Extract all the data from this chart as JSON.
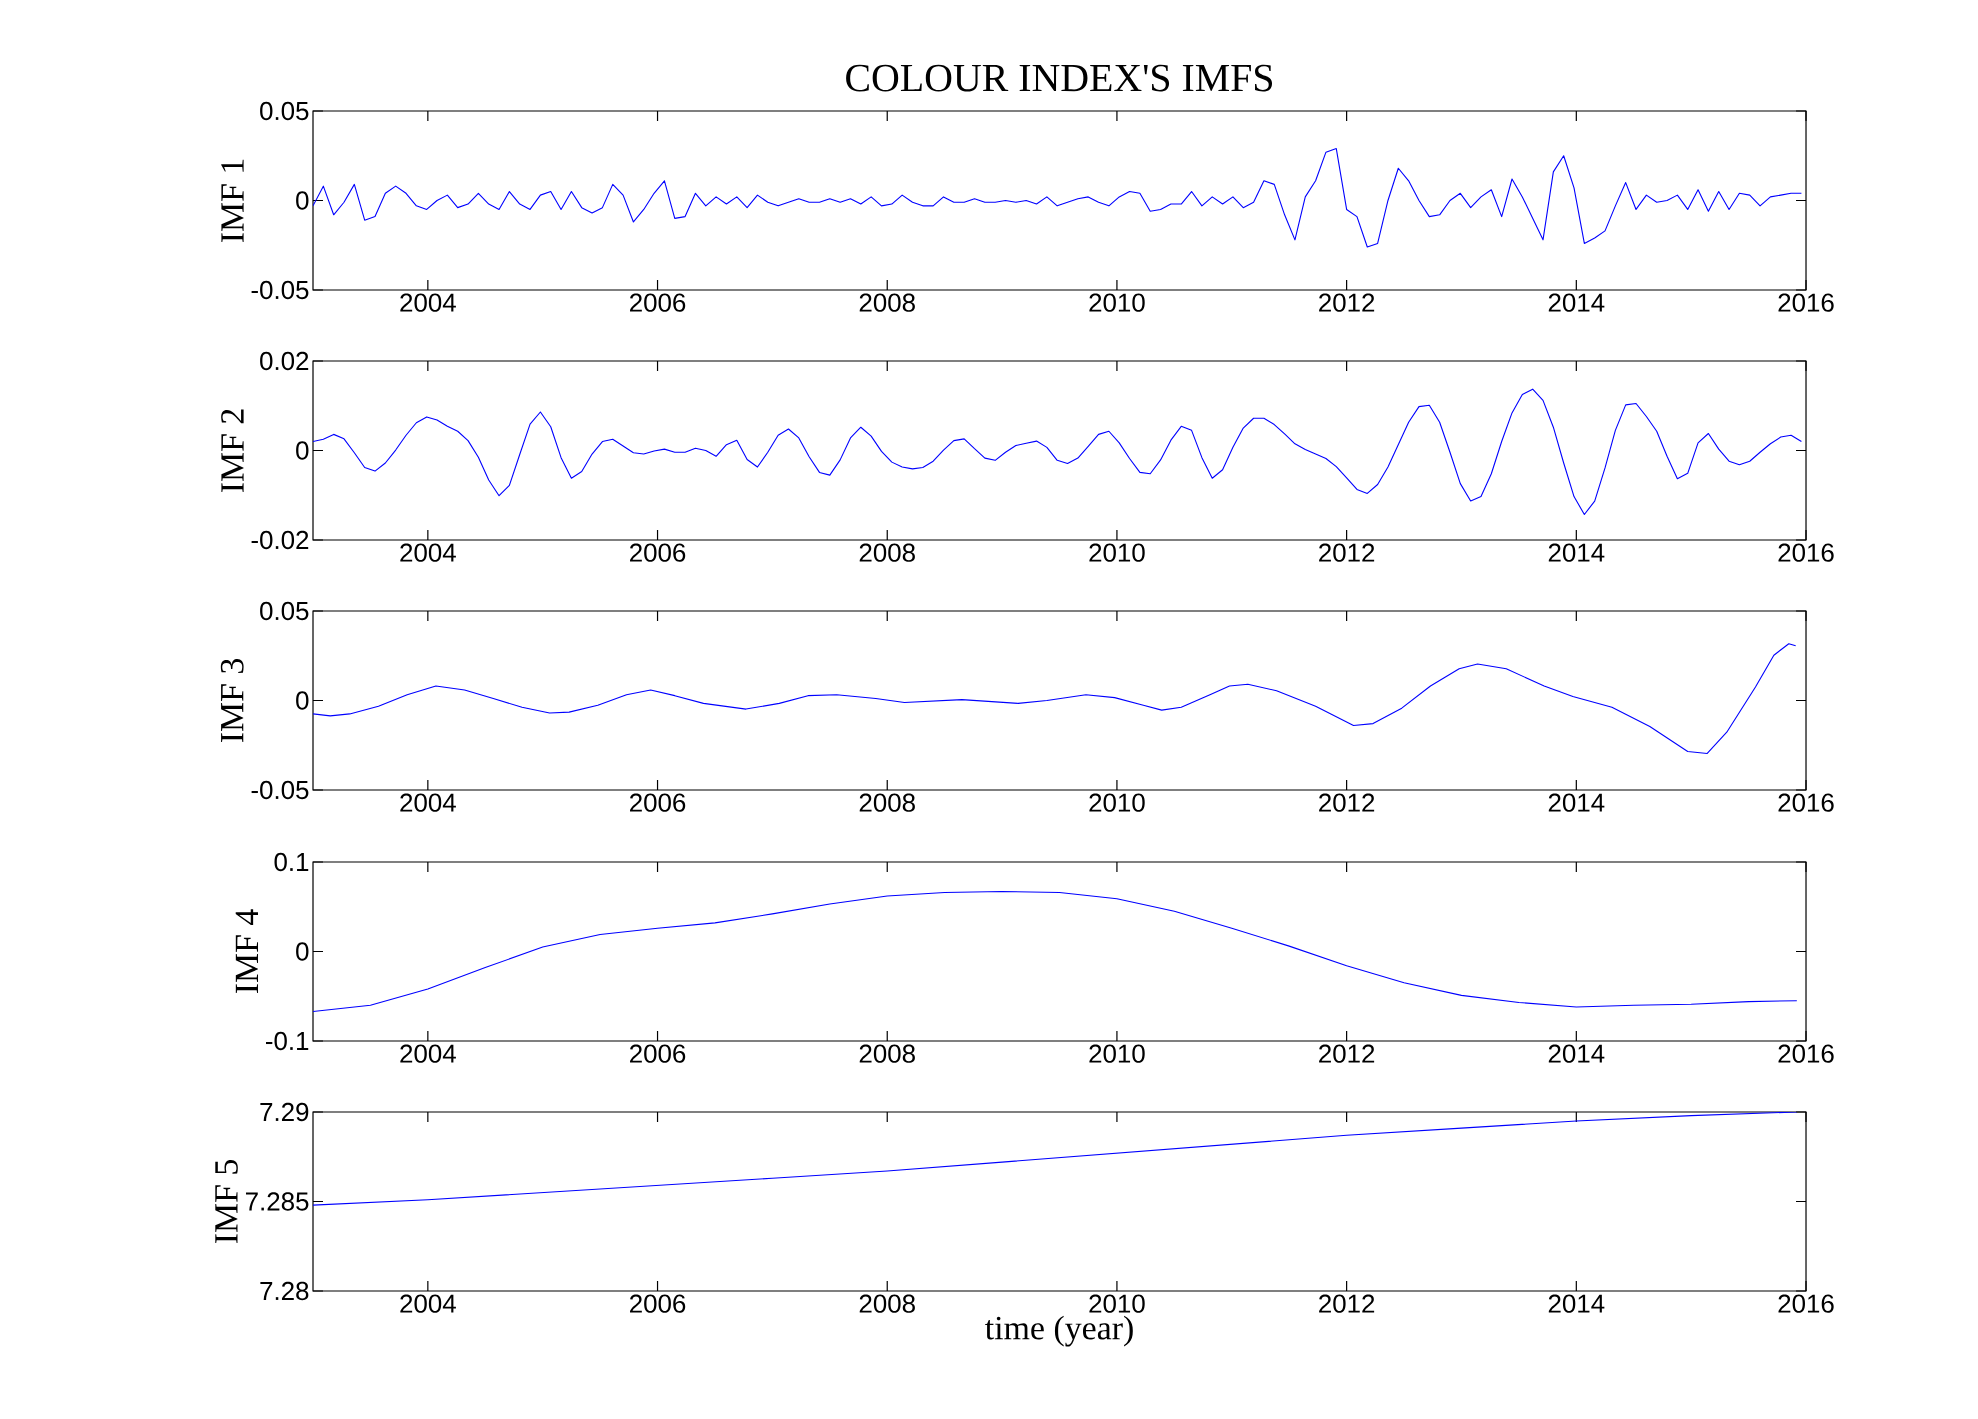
{
  "chart_data": [
    {
      "type": "line",
      "title": "COLOUR INDEX'S IMFS",
      "ylabel": "IMF 1",
      "xlim": [
        2003,
        2016
      ],
      "ylim": [
        -0.05,
        0.05
      ],
      "xticks": [
        2004,
        2006,
        2008,
        2010,
        2012,
        2014,
        2016
      ],
      "yticks": [
        -0.05,
        0,
        0.05
      ],
      "x": [
        2003.0,
        2003.09,
        2003.18,
        2003.27,
        2003.36,
        2003.45,
        2003.54,
        2003.63,
        2003.72,
        2003.81,
        2003.9,
        2003.99,
        2004.08,
        2004.17,
        2004.26,
        2004.35,
        2004.44,
        2004.53,
        2004.62,
        2004.71,
        2004.8,
        2004.89,
        2004.98,
        2005.07,
        2005.16,
        2005.25,
        2005.34,
        2005.43,
        2005.52,
        2005.61,
        2005.7,
        2005.79,
        2005.88,
        2005.97,
        2006.06,
        2006.15,
        2006.24,
        2006.33,
        2006.42,
        2006.51,
        2006.6,
        2006.69,
        2006.78,
        2006.87,
        2006.96,
        2007.05,
        2007.14,
        2007.23,
        2007.32,
        2007.41,
        2007.5,
        2007.59,
        2007.68,
        2007.77,
        2007.86,
        2007.95,
        2008.04,
        2008.13,
        2008.22,
        2008.31,
        2008.4,
        2008.49,
        2008.58,
        2008.67,
        2008.76,
        2008.85,
        2008.94,
        2009.03,
        2009.12,
        2009.21,
        2009.3,
        2009.39,
        2009.48,
        2009.57,
        2009.66,
        2009.75,
        2009.84,
        2009.93,
        2010.02,
        2010.11,
        2010.2,
        2010.29,
        2010.38,
        2010.47,
        2010.56,
        2010.65,
        2010.74,
        2010.83,
        2010.92,
        2011.01,
        2011.1,
        2011.19,
        2011.28,
        2011.37,
        2011.46,
        2011.55,
        2011.64,
        2011.73,
        2011.82,
        2011.91,
        2012.0,
        2012.09,
        2012.18,
        2012.27,
        2012.36,
        2012.45,
        2012.54,
        2012.63,
        2012.72,
        2012.81,
        2012.9,
        2012.99,
        2013.08,
        2013.17,
        2013.26,
        2013.35,
        2013.44,
        2013.53,
        2013.62,
        2013.71,
        2013.8,
        2013.89,
        2013.98,
        2014.07,
        2014.16,
        2014.25,
        2014.34,
        2014.43,
        2014.52,
        2014.61,
        2014.7,
        2014.79,
        2014.88,
        2014.97,
        2015.06,
        2015.15,
        2015.24,
        2015.33,
        2015.42,
        2015.51,
        2015.6,
        2015.69,
        2015.78,
        2015.87,
        2015.96
      ],
      "series": [
        {
          "color": "#0000ff",
          "values": [
            -0.003,
            0.008,
            -0.008,
            -0.001,
            0.009,
            -0.011,
            -0.009,
            0.004,
            0.008,
            0.004,
            -0.003,
            -0.005,
            0,
            0.003,
            -0.004,
            -0.002,
            0.004,
            -0.002,
            -0.005,
            0.005,
            -0.002,
            -0.005,
            0.003,
            0.005,
            -0.005,
            0.005,
            -0.004,
            -0.007,
            -0.004,
            0.009,
            0.003,
            -0.012,
            -0.005,
            0.004,
            0.011,
            -0.01,
            -0.009,
            0.004,
            -0.003,
            0.002,
            -0.002,
            0.002,
            -0.004,
            0.003,
            -0.001,
            -0.003,
            -0.001,
            0.001,
            -0.001,
            -0.001,
            0.001,
            -0.001,
            0.001,
            -0.002,
            0.002,
            -0.003,
            -0.002,
            0.003,
            -0.001,
            -0.003,
            -0.003,
            0.002,
            -0.001,
            -0.001,
            0.001,
            -0.001,
            -0.001,
            0,
            -0.001,
            0,
            -0.002,
            0.002,
            -0.003,
            -0.001,
            0.001,
            0.002,
            -0.001,
            -0.003,
            0.002,
            0.005,
            0.004,
            -0.006,
            -0.005,
            -0.002,
            -0.002,
            0.005,
            -0.003,
            0.002,
            -0.002,
            0.002,
            -0.004,
            -0.001,
            0.011,
            0.009,
            -0.008,
            -0.022,
            0.002,
            0.011,
            0.027,
            0.029,
            -0.005,
            -0.009,
            -0.026,
            -0.024,
            0,
            0.018,
            0.011,
            0,
            -0.009,
            -0.008,
            0,
            0.004,
            -0.004,
            0.002,
            0.006,
            -0.009,
            0.012,
            0.002,
            -0.01,
            -0.022,
            0.016,
            0.025,
            0.007,
            -0.024,
            -0.021,
            -0.017,
            -0.003,
            0.01,
            -0.005,
            0.003,
            -0.001,
            0,
            0.003,
            -0.005,
            0.006,
            -0.006,
            0.005,
            -0.005,
            0.004,
            0.003,
            -0.003,
            0.002,
            0.003,
            0.004,
            0.004
          ]
        }
      ]
    },
    {
      "type": "line",
      "ylabel": "IMF 2",
      "xlim": [
        2003,
        2016
      ],
      "ylim": [
        -0.02,
        0.02
      ],
      "xticks": [
        2004,
        2006,
        2008,
        2010,
        2012,
        2014,
        2016
      ],
      "yticks": [
        -0.02,
        0,
        0.02
      ],
      "x": [
        2003.0,
        2003.09,
        2003.18,
        2003.27,
        2003.36,
        2003.45,
        2003.54,
        2003.63,
        2003.72,
        2003.81,
        2003.9,
        2003.99,
        2004.08,
        2004.17,
        2004.26,
        2004.35,
        2004.44,
        2004.53,
        2004.62,
        2004.71,
        2004.8,
        2004.89,
        2004.98,
        2005.07,
        2005.16,
        2005.25,
        2005.34,
        2005.43,
        2005.52,
        2005.61,
        2005.7,
        2005.79,
        2005.88,
        2005.97,
        2006.06,
        2006.15,
        2006.24,
        2006.33,
        2006.42,
        2006.51,
        2006.6,
        2006.69,
        2006.78,
        2006.87,
        2006.96,
        2007.05,
        2007.14,
        2007.23,
        2007.32,
        2007.41,
        2007.5,
        2007.59,
        2007.68,
        2007.77,
        2007.86,
        2007.95,
        2008.04,
        2008.13,
        2008.22,
        2008.31,
        2008.4,
        2008.49,
        2008.58,
        2008.67,
        2008.76,
        2008.85,
        2008.94,
        2009.03,
        2009.12,
        2009.21,
        2009.3,
        2009.39,
        2009.48,
        2009.57,
        2009.66,
        2009.75,
        2009.84,
        2009.93,
        2010.02,
        2010.11,
        2010.2,
        2010.29,
        2010.38,
        2010.47,
        2010.56,
        2010.65,
        2010.74,
        2010.83,
        2010.92,
        2011.01,
        2011.1,
        2011.19,
        2011.28,
        2011.37,
        2011.46,
        2011.55,
        2011.64,
        2011.73,
        2011.82,
        2011.91,
        2012.0,
        2012.09,
        2012.18,
        2012.27,
        2012.36,
        2012.45,
        2012.54,
        2012.63,
        2012.72,
        2012.81,
        2012.9,
        2012.99,
        2013.08,
        2013.17,
        2013.26,
        2013.35,
        2013.44,
        2013.53,
        2013.62,
        2013.71,
        2013.8,
        2013.89,
        2013.98,
        2014.07,
        2014.16,
        2014.25,
        2014.34,
        2014.43,
        2014.52,
        2014.61,
        2014.7,
        2014.79,
        2014.88,
        2014.97,
        2015.06,
        2015.15,
        2015.24,
        2015.33,
        2015.42,
        2015.51,
        2015.6,
        2015.69,
        2015.78,
        2015.87,
        2015.96
      ],
      "series": [
        {
          "color": "#0000ff",
          "values": [
            0.002,
            0.0025,
            0.0036,
            0.0026,
            -0.0005,
            -0.0038,
            -0.0046,
            -0.0028,
            0.0001,
            0.0034,
            0.0062,
            0.0075,
            0.0068,
            0.0054,
            0.0043,
            0.0022,
            -0.0015,
            -0.0066,
            -0.0101,
            -0.0078,
            -0.0009,
            0.0059,
            0.0086,
            0.0053,
            -0.0016,
            -0.0062,
            -0.0047,
            -0.0008,
            0.002,
            0.0025,
            0.001,
            -0.0005,
            -0.0008,
            -0.0001,
            0.0003,
            -0.0004,
            -0.0004,
            0.0005,
            0,
            -0.0013,
            0.0013,
            0.0023,
            -0.002,
            -0.0037,
            -0.0004,
            0.0034,
            0.0048,
            0.0028,
            -0.0014,
            -0.0049,
            -0.0055,
            -0.0021,
            0.0028,
            0.0052,
            0.0032,
            -0.0002,
            -0.0026,
            -0.0037,
            -0.0041,
            -0.0038,
            -0.0024,
            0.0001,
            0.0022,
            0.0026,
            0.0004,
            -0.0017,
            -0.0022,
            -0.0004,
            0.0011,
            0.0016,
            0.0021,
            0.0007,
            -0.0022,
            -0.0029,
            -0.0017,
            0.0009,
            0.0036,
            0.0043,
            0.0017,
            -0.0018,
            -0.0049,
            -0.0052,
            -0.0021,
            0.0023,
            0.0054,
            0.0045,
            -0.0016,
            -0.0062,
            -0.0043,
            0.0007,
            0.005,
            0.0072,
            0.0072,
            0.0058,
            0.0037,
            0.0015,
            0.0002,
            -0.0008,
            -0.0018,
            -0.0036,
            -0.0061,
            -0.0087,
            -0.0096,
            -0.0076,
            -0.0037,
            0.0013,
            0.0063,
            0.0098,
            0.0101,
            0.0063,
            -0.0004,
            -0.0074,
            -0.0113,
            -0.0103,
            -0.0052,
            0.002,
            0.0084,
            0.0125,
            0.0137,
            0.0112,
            0.0052,
            -0.0028,
            -0.0103,
            -0.0143,
            -0.0113,
            -0.0039,
            0.0045,
            0.0102,
            0.0105,
            0.0076,
            0.0043,
            -0.0013,
            -0.0063,
            -0.0051,
            0.0017,
            0.0038,
            0.0003,
            -0.0024,
            -0.0032,
            -0.0024,
            -0.0004,
            0.0015,
            0.003,
            0.0034,
            0.002
          ]
        }
      ]
    },
    {
      "type": "line",
      "ylabel": "IMF 3",
      "xlim": [
        2003,
        2016
      ],
      "ylim": [
        -0.05,
        0.05
      ],
      "xticks": [
        2004,
        2006,
        2008,
        2010,
        2012,
        2014,
        2016
      ],
      "yticks": [
        -0.05,
        0,
        0.05
      ],
      "x": [
        2003.0,
        2003.15,
        2003.32,
        2003.57,
        2003.82,
        2004.07,
        2004.32,
        2004.57,
        2004.82,
        2005.06,
        2005.23,
        2005.48,
        2005.73,
        2005.94,
        2006.15,
        2006.4,
        2006.77,
        2007.06,
        2007.31,
        2007.56,
        2007.9,
        2008.15,
        2008.65,
        2009.14,
        2009.39,
        2009.73,
        2009.98,
        2010.23,
        2010.39,
        2010.56,
        2010.81,
        2010.98,
        2011.14,
        2011.39,
        2011.73,
        2012.06,
        2012.23,
        2012.48,
        2012.73,
        2012.98,
        2013.14,
        2013.39,
        2013.72,
        2013.97,
        2014.31,
        2014.64,
        2014.97,
        2015.14,
        2015.31,
        2015.56,
        2015.72,
        2015.85,
        2015.91
      ],
      "series": [
        {
          "color": "#0000ff",
          "values": [
            -0.0075,
            -0.0086,
            -0.0075,
            -0.0032,
            0.0032,
            0.0081,
            0.0059,
            0.0011,
            -0.0038,
            -0.007,
            -0.0065,
            -0.0027,
            0.0032,
            0.0059,
            0.0027,
            -0.0016,
            -0.0048,
            -0.0016,
            0.0027,
            0.0032,
            0.0011,
            -0.0011,
            0.0005,
            -0.0016,
            0,
            0.0032,
            0.0016,
            -0.0027,
            -0.0054,
            -0.0038,
            0.0032,
            0.0081,
            0.0091,
            0.0054,
            -0.0032,
            -0.014,
            -0.0129,
            -0.0043,
            0.0081,
            0.0177,
            0.0204,
            0.0177,
            0.0081,
            0.0022,
            -0.0038,
            -0.0145,
            -0.0285,
            -0.0296,
            -0.0177,
            0.0075,
            0.0253,
            0.0317,
            0.0306
          ]
        }
      ]
    },
    {
      "type": "line",
      "ylabel": "IMF 4",
      "xlim": [
        2003,
        2016
      ],
      "ylim": [
        -0.1,
        0.1
      ],
      "xticks": [
        2004,
        2006,
        2008,
        2010,
        2012,
        2014,
        2016
      ],
      "yticks": [
        -0.1,
        0,
        0.1
      ],
      "x": [
        2003.0,
        2003.5,
        2004.0,
        2004.5,
        2005.0,
        2005.5,
        2006.0,
        2006.5,
        2007.0,
        2007.5,
        2008.0,
        2008.5,
        2009.0,
        2009.5,
        2010.0,
        2010.5,
        2011.0,
        2011.5,
        2012.0,
        2012.5,
        2013.0,
        2013.5,
        2014.0,
        2014.5,
        2015.0,
        2015.5,
        2015.92
      ],
      "series": [
        {
          "color": "#0000ff",
          "values": [
            -0.067,
            -0.06,
            -0.042,
            -0.018,
            0.005,
            0.019,
            0.026,
            0.032,
            0.042,
            0.053,
            0.062,
            0.066,
            0.067,
            0.066,
            0.059,
            0.045,
            0.026,
            0.006,
            -0.016,
            -0.035,
            -0.049,
            -0.057,
            -0.062,
            -0.06,
            -0.059,
            -0.056,
            -0.055
          ]
        }
      ]
    },
    {
      "type": "line",
      "ylabel": "IMF 5",
      "xlabel": "time (year)",
      "xlim": [
        2003,
        2016
      ],
      "ylim": [
        7.28,
        7.29
      ],
      "xticks": [
        2004,
        2006,
        2008,
        2010,
        2012,
        2014,
        2016
      ],
      "yticks": [
        7.28,
        7.285,
        7.29
      ],
      "x": [
        2003.0,
        2004.0,
        2005.0,
        2006.0,
        2007.0,
        2008.0,
        2009.0,
        2010.0,
        2011.0,
        2012.0,
        2013.0,
        2014.0,
        2015.0,
        2015.92
      ],
      "series": [
        {
          "color": "#0000ff",
          "values": [
            7.2848,
            7.2851,
            7.2855,
            7.2859,
            7.2863,
            7.2867,
            7.2872,
            7.2877,
            7.2882,
            7.2887,
            7.2891,
            7.2895,
            7.2898,
            7.29
          ]
        }
      ]
    }
  ]
}
